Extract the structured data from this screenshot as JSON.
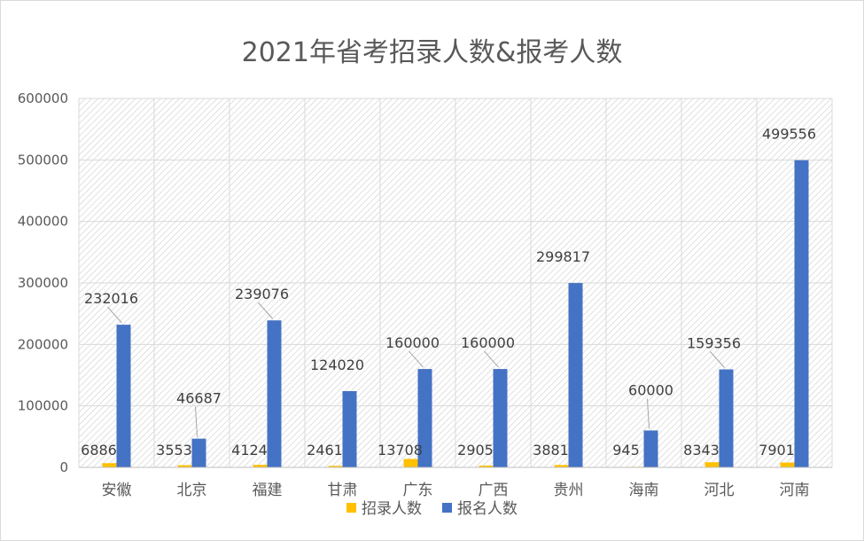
{
  "chart_data": {
    "type": "bar",
    "title": "2021年省考招录人数&报考人数",
    "categories": [
      "安徽",
      "北京",
      "福建",
      "甘肃",
      "广东",
      "广西",
      "贵州",
      "海南",
      "河北",
      "河南"
    ],
    "series": [
      {
        "name": "招录人数",
        "color": "#FFC000",
        "values": [
          6886,
          3553,
          4124,
          2461,
          13708,
          2905,
          3881,
          945,
          8343,
          7901
        ]
      },
      {
        "name": "报名人数",
        "color": "#4472C4",
        "values": [
          232016,
          46687,
          239076,
          124020,
          160000,
          160000,
          299817,
          60000,
          159356,
          499556
        ]
      }
    ],
    "ylim": [
      0,
      600000
    ],
    "yticks": [
      0,
      100000,
      200000,
      300000,
      400000,
      500000,
      600000
    ],
    "grid": true,
    "legend": "bottom",
    "data_labels": true
  }
}
